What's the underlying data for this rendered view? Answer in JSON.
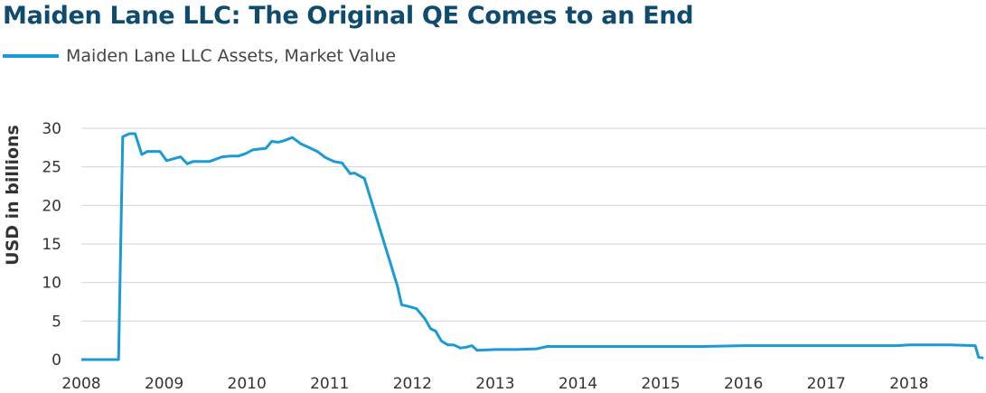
{
  "chart_data": {
    "type": "line",
    "title": "Maiden Lane LLC: The Original QE Comes to an End",
    "ylabel": "USD in billions",
    "xlabel": "",
    "legend_placement": "top-left",
    "grid": "horizontal",
    "color": "#1a9ad6",
    "xlim": [
      2008.0,
      2018.93
    ],
    "ylim": [
      0,
      30
    ],
    "x_ticks": [
      "2008",
      "2009",
      "2010",
      "2011",
      "2012",
      "2013",
      "2014",
      "2015",
      "2016",
      "2017",
      "2018"
    ],
    "y_ticks": [
      "0",
      "5",
      "10",
      "15",
      "20",
      "25",
      "30"
    ],
    "series": [
      {
        "name": "Maiden Lane LLC Assets, Market Value",
        "x": [
          2008.0,
          2008.45,
          2008.5,
          2008.58,
          2008.65,
          2008.73,
          2008.8,
          2008.88,
          2008.95,
          2009.03,
          2009.1,
          2009.2,
          2009.28,
          2009.35,
          2009.45,
          2009.55,
          2009.7,
          2009.8,
          2009.9,
          2009.98,
          2010.07,
          2010.15,
          2010.23,
          2010.3,
          2010.38,
          2010.45,
          2010.55,
          2010.65,
          2010.75,
          2010.85,
          2010.95,
          2011.05,
          2011.15,
          2011.25,
          2011.3,
          2011.35,
          2011.42,
          2011.52,
          2011.62,
          2011.72,
          2011.82,
          2011.87,
          2011.95,
          2012.05,
          2012.15,
          2012.22,
          2012.28,
          2012.35,
          2012.43,
          2012.5,
          2012.58,
          2012.65,
          2012.72,
          2012.78,
          2013.0,
          2013.25,
          2013.5,
          2013.63,
          2013.72,
          2014.0,
          2014.5,
          2015.0,
          2015.5,
          2016.0,
          2016.5,
          2017.0,
          2017.5,
          2017.85,
          2018.0,
          2018.5,
          2018.8,
          2018.84,
          2018.9
        ],
        "values": [
          0,
          0,
          28.9,
          29.3,
          29.3,
          26.6,
          27.0,
          27.0,
          27.0,
          25.8,
          26.0,
          26.3,
          25.4,
          25.7,
          25.7,
          25.7,
          26.3,
          26.4,
          26.4,
          26.7,
          27.2,
          27.3,
          27.4,
          28.3,
          28.2,
          28.4,
          28.8,
          28.0,
          27.5,
          27.0,
          26.2,
          25.7,
          25.5,
          24.1,
          24.2,
          23.9,
          23.5,
          20.0,
          16.5,
          13.0,
          9.5,
          7.1,
          6.9,
          6.6,
          5.3,
          4.0,
          3.7,
          2.4,
          1.9,
          1.9,
          1.5,
          1.6,
          1.8,
          1.2,
          1.3,
          1.3,
          1.4,
          1.7,
          1.7,
          1.7,
          1.7,
          1.7,
          1.7,
          1.8,
          1.8,
          1.8,
          1.8,
          1.8,
          1.9,
          1.9,
          1.8,
          0.3,
          0.2
        ]
      }
    ]
  }
}
